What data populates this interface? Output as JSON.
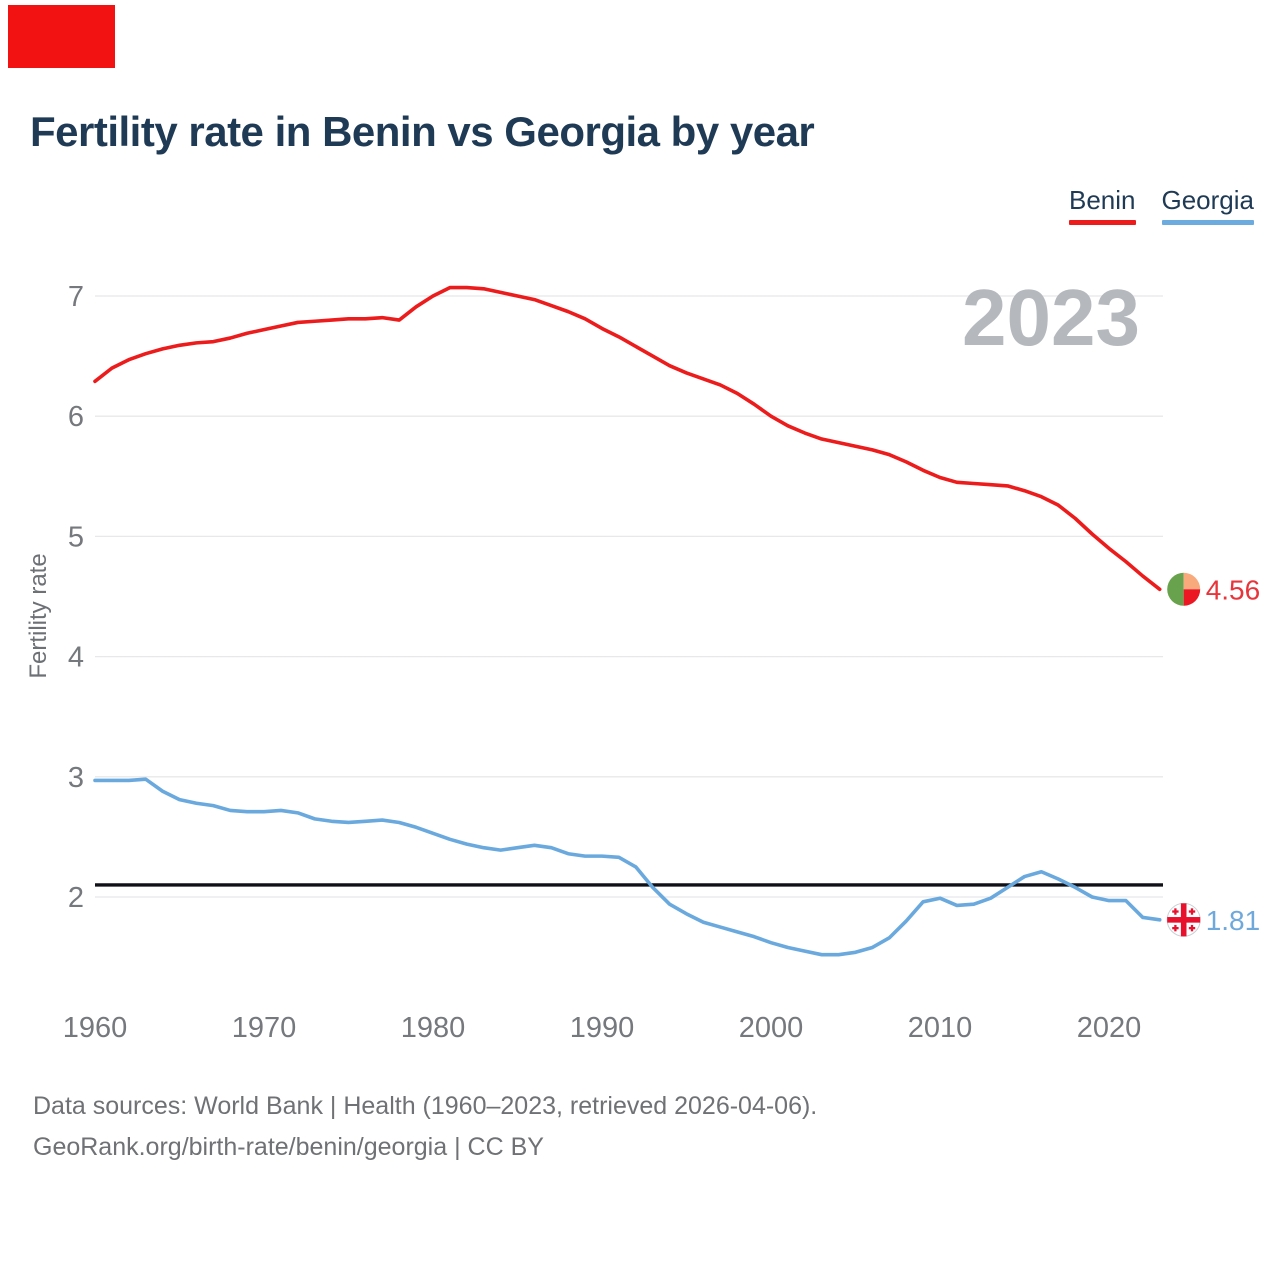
{
  "page": {
    "corner_marker_color": "#f31212",
    "background": "#ffffff",
    "title_color": "#1f3a55"
  },
  "title": "Fertility rate in Benin vs Georgia by year",
  "legend": [
    {
      "label": "Benin",
      "color": "#ed1c1c"
    },
    {
      "label": "Georgia",
      "color": "#6cabdd"
    }
  ],
  "footer": {
    "line1": "Data sources: World Bank | Health (1960–2023, retrieved 2026-04-06).",
    "line2": "GeoRank.org/birth-rate/benin/georgia | CC BY"
  },
  "chart_data": {
    "type": "line",
    "title": "Fertility rate in Benin vs Georgia by year",
    "xlabel": "",
    "ylabel": "Fertility rate",
    "x": [
      1960,
      1961,
      1962,
      1963,
      1964,
      1965,
      1966,
      1967,
      1968,
      1969,
      1970,
      1971,
      1972,
      1973,
      1974,
      1975,
      1976,
      1977,
      1978,
      1979,
      1980,
      1981,
      1982,
      1983,
      1984,
      1985,
      1986,
      1987,
      1988,
      1989,
      1990,
      1991,
      1992,
      1993,
      1994,
      1995,
      1996,
      1997,
      1998,
      1999,
      2000,
      2001,
      2002,
      2003,
      2004,
      2005,
      2006,
      2007,
      2008,
      2009,
      2010,
      2011,
      2012,
      2013,
      2014,
      2015,
      2016,
      2017,
      2018,
      2019,
      2020,
      2021,
      2022,
      2023
    ],
    "series": [
      {
        "name": "Benin",
        "color": "#ed1c1c",
        "end_label": "4.56",
        "end_label_color": "#e8353b",
        "values": [
          6.29,
          6.4,
          6.47,
          6.52,
          6.56,
          6.59,
          6.61,
          6.62,
          6.65,
          6.69,
          6.72,
          6.75,
          6.78,
          6.79,
          6.8,
          6.81,
          6.81,
          6.82,
          6.8,
          6.91,
          7.0,
          7.07,
          7.07,
          7.06,
          7.03,
          7.0,
          6.97,
          6.92,
          6.87,
          6.81,
          6.73,
          6.66,
          6.58,
          6.5,
          6.42,
          6.36,
          6.31,
          6.26,
          6.19,
          6.1,
          6.0,
          5.92,
          5.86,
          5.81,
          5.78,
          5.75,
          5.72,
          5.68,
          5.62,
          5.55,
          5.49,
          5.45,
          5.44,
          5.43,
          5.42,
          5.38,
          5.33,
          5.26,
          5.15,
          5.02,
          4.9,
          4.79,
          4.67,
          4.56
        ]
      },
      {
        "name": "Georgia",
        "color": "#6aa9de",
        "end_label": "1.81",
        "end_label_color": "#6fa9dc",
        "values": [
          2.97,
          2.97,
          2.97,
          2.98,
          2.88,
          2.81,
          2.78,
          2.76,
          2.72,
          2.71,
          2.71,
          2.72,
          2.7,
          2.65,
          2.63,
          2.62,
          2.63,
          2.64,
          2.62,
          2.58,
          2.53,
          2.48,
          2.44,
          2.41,
          2.39,
          2.41,
          2.43,
          2.41,
          2.36,
          2.34,
          2.34,
          2.33,
          2.25,
          2.08,
          1.94,
          1.86,
          1.79,
          1.75,
          1.71,
          1.67,
          1.62,
          1.58,
          1.55,
          1.52,
          1.52,
          1.54,
          1.58,
          1.66,
          1.8,
          1.96,
          1.99,
          1.93,
          1.94,
          1.99,
          2.08,
          2.17,
          2.21,
          2.15,
          2.08,
          2.0,
          1.97,
          1.97,
          1.83,
          1.81
        ]
      }
    ],
    "yticks": [
      2,
      3,
      4,
      5,
      6,
      7
    ],
    "xticks": [
      1960,
      1970,
      1980,
      1990,
      2000,
      2010,
      2020
    ],
    "ylim": [
      1.4,
      7.4
    ],
    "xlim": [
      1960,
      2023
    ],
    "grid": "horizontal",
    "legend_position": "top-right",
    "annotations": {
      "replacement_rate_line": 2.1,
      "replacement_line_color": "#101018",
      "watermark": "2023",
      "watermark_color": "#b5b9bd"
    },
    "style": {
      "grid_color": "#e8e8ea",
      "ytick_color": "#75787c",
      "xtick_color": "#75787c",
      "axis_title_color": "#6d7074"
    }
  }
}
